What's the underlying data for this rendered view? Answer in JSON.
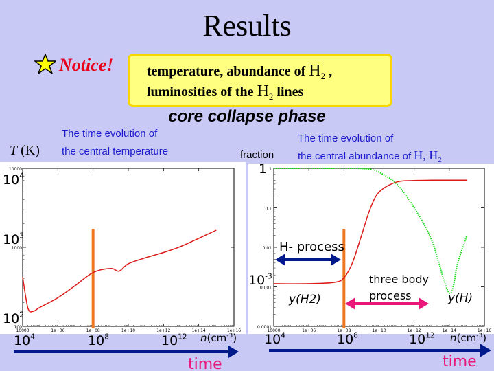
{
  "slide": {
    "title": "Results",
    "notice": "Notice!",
    "note_line1": "temperature, abundance of",
    "note_line2": "luminosities of the",
    "note_line2_tail": "lines",
    "phase": "core collapse phase",
    "left_caption1": "The time evolution of",
    "left_caption2": "the central temperature",
    "right_caption1": "The time evolution of",
    "right_caption2": "the central abundance of",
    "fraction": "fraction",
    "left_ylabel": "T (K)",
    "h_minus_process": "H- process",
    "three_body": "three body",
    "process": "process",
    "y_h2": "y(H2)",
    "y_h": "y(H)",
    "time": "time",
    "n_unit": "n(cm-3)"
  },
  "colors": {
    "curve_red": "#dd1a1a",
    "curve_green": "#22dd22",
    "marker_orange": "#ee7722",
    "arrow_blue": "#001a8c",
    "arrow_pink": "#e8187a",
    "star": "#ffff00"
  },
  "chart_data": [
    {
      "type": "line",
      "xscale": "log",
      "yscale": "log",
      "xlim": [
        10000,
        1e+16
      ],
      "ylim": [
        100,
        10000
      ],
      "x_ticks": [
        "10000",
        "1e+06",
        "1e+08",
        "1e+10",
        "1e+12",
        "1e+14",
        "1e+16"
      ],
      "y_ticks": [
        "100",
        "1000",
        "10000"
      ],
      "y_ticks_overlay": [
        "10^2",
        "10^3",
        "10^4"
      ],
      "x_ticks_overlay": [
        "10^4",
        "10^8",
        "10^12"
      ],
      "marker_x": 100000000.0,
      "series": [
        {
          "x": [
            10000,
            20000,
            40000,
            100000,
            1000000,
            10000000,
            100000000,
            1000000000,
            3000000000,
            10000000000,
            100000000000,
            1000000000000,
            10000000000000,
            100000000000000,
            1000000000000000
          ],
          "y": [
            420,
            170,
            155,
            175,
            230,
            330,
            480,
            540,
            500,
            620,
            740,
            860,
            1030,
            1300,
            1650
          ]
        }
      ]
    },
    {
      "type": "line",
      "xscale": "log",
      "yscale": "log",
      "xlim": [
        10000,
        1e+16
      ],
      "ylim": [
        0.0001,
        1
      ],
      "x_ticks": [
        "10000",
        "1e+06",
        "1e+08",
        "1e+10",
        "1e+12",
        "1e+14",
        "1e+16"
      ],
      "y_ticks": [
        "0.0001",
        "0.001",
        "0.01",
        "0.1",
        "1"
      ],
      "y_ticks_overlay": [
        "1",
        "10^-3"
      ],
      "x_ticks_overlay": [
        "10^4",
        "10^8",
        "10^12"
      ],
      "marker_x": 100000000.0,
      "series": [
        {
          "x": [
            10000,
            1000000,
            30000000,
            100000000,
            300000000,
            1000000000,
            3000000000,
            10000000000,
            100000000000,
            1000000000000,
            10000000000000,
            100000000000000,
            1000000000000000
          ],
          "y": [
            0.0012,
            0.0012,
            0.0013,
            0.0017,
            0.004,
            0.02,
            0.09,
            0.25,
            0.45,
            0.49,
            0.5,
            0.5,
            0.5
          ]
        },
        {
          "x": [
            10000,
            1000000,
            100000000,
            1000000000,
            3000000000,
            10000000000,
            100000000000,
            1000000000000,
            10000000000000,
            100000000000000,
            300000000000000,
            1000000000000000
          ],
          "y": [
            1,
            1,
            1,
            0.99,
            0.95,
            0.8,
            0.4,
            0.1,
            0.015,
            0.0007,
            0.004,
            0.02
          ]
        }
      ]
    }
  ]
}
